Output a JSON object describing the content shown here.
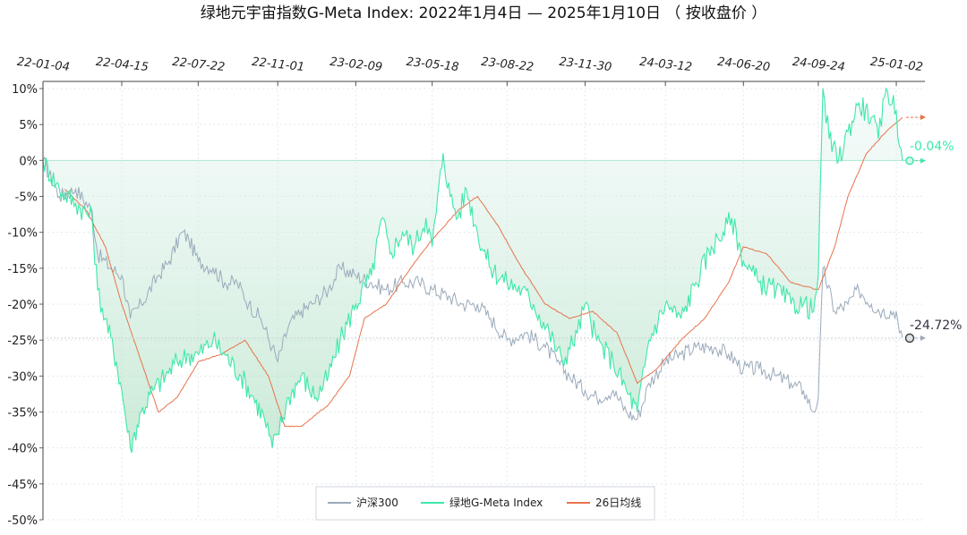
{
  "chart_data": {
    "type": "line",
    "title": "绿地元宇宙指数G-Meta Index:  2022年1月4日  —  2025年1月10日 （ 按收盘价 ）",
    "x_tick_labels": [
      "22-01-04",
      "22-04-15",
      "22-07-22",
      "22-11-01",
      "23-02-09",
      "23-05-18",
      "23-08-22",
      "23-11-30",
      "24-03-12",
      "24-06-20",
      "24-09-24",
      "25-01-02"
    ],
    "y_tick_labels": [
      "10%",
      "5%",
      "0%",
      "-5%",
      "-10%",
      "-15%",
      "-20%",
      "-25%",
      "-30%",
      "-35%",
      "-40%",
      "-45%",
      "-50%"
    ],
    "ylim": [
      -50,
      10
    ],
    "x_range": [
      "2022-01-04",
      "2025-01-10"
    ],
    "grid": true,
    "legend_position": "bottom-center",
    "end_labels": {
      "gmeta": "-0.04%",
      "hs300": "-24.72%"
    },
    "series": [
      {
        "name": "沪深300",
        "color": "#9aaabb",
        "points": [
          [
            "2022-01-04",
            0
          ],
          [
            "2022-01-25",
            -5
          ],
          [
            "2022-02-15",
            -4
          ],
          [
            "2022-03-08",
            -7
          ],
          [
            "2022-03-15",
            -13
          ],
          [
            "2022-04-01",
            -15
          ],
          [
            "2022-04-15",
            -16
          ],
          [
            "2022-04-26",
            -22
          ],
          [
            "2022-05-10",
            -20
          ],
          [
            "2022-06-01",
            -16
          ],
          [
            "2022-06-15",
            -14
          ],
          [
            "2022-07-01",
            -10
          ],
          [
            "2022-07-10",
            -11
          ],
          [
            "2022-07-22",
            -14
          ],
          [
            "2022-08-10",
            -15
          ],
          [
            "2022-08-25",
            -17
          ],
          [
            "2022-09-10",
            -17
          ],
          [
            "2022-09-25",
            -20
          ],
          [
            "2022-10-10",
            -22
          ],
          [
            "2022-10-25",
            -26
          ],
          [
            "2022-11-01",
            -28
          ],
          [
            "2022-11-15",
            -23
          ],
          [
            "2022-12-01",
            -21
          ],
          [
            "2022-12-15",
            -20
          ],
          [
            "2023-01-05",
            -18
          ],
          [
            "2023-01-20",
            -15
          ],
          [
            "2023-02-09",
            -16
          ],
          [
            "2023-03-01",
            -17
          ],
          [
            "2023-03-20",
            -18
          ],
          [
            "2023-04-10",
            -17
          ],
          [
            "2023-05-01",
            -17
          ],
          [
            "2023-05-18",
            -18
          ],
          [
            "2023-06-10",
            -19
          ],
          [
            "2023-06-25",
            -20
          ],
          [
            "2023-07-15",
            -20
          ],
          [
            "2023-08-01",
            -22
          ],
          [
            "2023-08-22",
            -25
          ],
          [
            "2023-09-15",
            -24
          ],
          [
            "2023-10-10",
            -26
          ],
          [
            "2023-10-25",
            -28
          ],
          [
            "2023-11-10",
            -30
          ],
          [
            "2023-11-30",
            -32
          ],
          [
            "2023-12-15",
            -33
          ],
          [
            "2024-01-05",
            -32
          ],
          [
            "2024-01-22",
            -35
          ],
          [
            "2024-02-05",
            -36
          ],
          [
            "2024-02-20",
            -31
          ],
          [
            "2024-03-12",
            -28
          ],
          [
            "2024-04-01",
            -27
          ],
          [
            "2024-04-20",
            -26
          ],
          [
            "2024-05-15",
            -26
          ],
          [
            "2024-06-01",
            -27
          ],
          [
            "2024-06-20",
            -29
          ],
          [
            "2024-07-10",
            -29
          ],
          [
            "2024-08-01",
            -30
          ],
          [
            "2024-08-20",
            -31
          ],
          [
            "2024-09-05",
            -32
          ],
          [
            "2024-09-18",
            -35
          ],
          [
            "2024-09-24",
            -33
          ],
          [
            "2024-09-30",
            -15
          ],
          [
            "2024-10-15",
            -21
          ],
          [
            "2024-11-01",
            -20
          ],
          [
            "2024-11-15",
            -18
          ],
          [
            "2024-12-01",
            -20
          ],
          [
            "2024-12-15",
            -21
          ],
          [
            "2025-01-02",
            -21
          ],
          [
            "2025-01-06",
            -24
          ],
          [
            "2025-01-10",
            -24.72
          ]
        ]
      },
      {
        "name": "绿地G-Meta Index",
        "color": "#3de8a8",
        "points": [
          [
            "2022-01-04",
            0
          ],
          [
            "2022-01-25",
            -4
          ],
          [
            "2022-02-15",
            -6
          ],
          [
            "2022-03-08",
            -8
          ],
          [
            "2022-03-15",
            -18
          ],
          [
            "2022-03-25",
            -22
          ],
          [
            "2022-04-08",
            -28
          ],
          [
            "2022-04-15",
            -32
          ],
          [
            "2022-04-26",
            -40
          ],
          [
            "2022-05-10",
            -35
          ],
          [
            "2022-05-25",
            -32
          ],
          [
            "2022-06-10",
            -30
          ],
          [
            "2022-06-25",
            -28
          ],
          [
            "2022-07-10",
            -27
          ],
          [
            "2022-07-22",
            -27
          ],
          [
            "2022-08-10",
            -25
          ],
          [
            "2022-08-25",
            -27
          ],
          [
            "2022-09-15",
            -30
          ],
          [
            "2022-10-01",
            -33
          ],
          [
            "2022-10-15",
            -36
          ],
          [
            "2022-10-25",
            -40
          ],
          [
            "2022-11-01",
            -38
          ],
          [
            "2022-11-15",
            -33
          ],
          [
            "2022-12-01",
            -30
          ],
          [
            "2022-12-20",
            -33
          ],
          [
            "2023-01-05",
            -30
          ],
          [
            "2023-01-20",
            -25
          ],
          [
            "2023-02-09",
            -20
          ],
          [
            "2023-03-01",
            -16
          ],
          [
            "2023-03-15",
            -8
          ],
          [
            "2023-03-25",
            -13
          ],
          [
            "2023-04-10",
            -10
          ],
          [
            "2023-04-25",
            -12
          ],
          [
            "2023-05-10",
            -8
          ],
          [
            "2023-05-18",
            -12
          ],
          [
            "2023-06-01",
            1
          ],
          [
            "2023-06-10",
            -5
          ],
          [
            "2023-06-20",
            -8
          ],
          [
            "2023-07-01",
            -4
          ],
          [
            "2023-07-15",
            -10
          ],
          [
            "2023-08-01",
            -15
          ],
          [
            "2023-08-22",
            -17
          ],
          [
            "2023-09-10",
            -18
          ],
          [
            "2023-09-25",
            -20
          ],
          [
            "2023-10-15",
            -24
          ],
          [
            "2023-11-01",
            -28
          ],
          [
            "2023-11-20",
            -24
          ],
          [
            "2023-11-30",
            -20
          ],
          [
            "2023-12-15",
            -25
          ],
          [
            "2024-01-05",
            -28
          ],
          [
            "2024-01-22",
            -32
          ],
          [
            "2024-02-05",
            -35
          ],
          [
            "2024-02-20",
            -25
          ],
          [
            "2024-03-12",
            -20
          ],
          [
            "2024-04-01",
            -22
          ],
          [
            "2024-04-20",
            -17
          ],
          [
            "2024-05-10",
            -12
          ],
          [
            "2024-05-25",
            -10
          ],
          [
            "2024-06-05",
            -8
          ],
          [
            "2024-06-20",
            -14
          ],
          [
            "2024-07-10",
            -17
          ],
          [
            "2024-08-01",
            -18
          ],
          [
            "2024-08-20",
            -20
          ],
          [
            "2024-09-05",
            -20
          ],
          [
            "2024-09-18",
            -21
          ],
          [
            "2024-09-24",
            -16
          ],
          [
            "2024-09-30",
            10
          ],
          [
            "2024-10-08",
            3
          ],
          [
            "2024-10-20",
            0
          ],
          [
            "2024-11-01",
            4
          ],
          [
            "2024-11-15",
            8
          ],
          [
            "2024-12-01",
            6
          ],
          [
            "2024-12-10",
            3
          ],
          [
            "2024-12-20",
            10
          ],
          [
            "2025-01-02",
            7
          ],
          [
            "2025-01-06",
            2
          ],
          [
            "2025-01-10",
            -0.04
          ]
        ]
      },
      {
        "name": "26日均线",
        "color": "#e8734a",
        "points": [
          [
            "2022-02-01",
            -4
          ],
          [
            "2022-03-01",
            -7
          ],
          [
            "2022-03-25",
            -12
          ],
          [
            "2022-04-15",
            -20
          ],
          [
            "2022-05-10",
            -28
          ],
          [
            "2022-06-01",
            -35
          ],
          [
            "2022-06-25",
            -33
          ],
          [
            "2022-07-22",
            -28
          ],
          [
            "2022-08-20",
            -27
          ],
          [
            "2022-09-20",
            -25
          ],
          [
            "2022-10-20",
            -30
          ],
          [
            "2022-11-10",
            -37
          ],
          [
            "2022-12-01",
            -37
          ],
          [
            "2023-01-05",
            -34
          ],
          [
            "2023-02-01",
            -30
          ],
          [
            "2023-02-20",
            -22
          ],
          [
            "2023-03-20",
            -20
          ],
          [
            "2023-04-20",
            -15
          ],
          [
            "2023-05-18",
            -11
          ],
          [
            "2023-06-20",
            -7
          ],
          [
            "2023-07-15",
            -5
          ],
          [
            "2023-08-10",
            -9
          ],
          [
            "2023-09-10",
            -15
          ],
          [
            "2023-10-10",
            -20
          ],
          [
            "2023-11-10",
            -22
          ],
          [
            "2023-12-10",
            -21
          ],
          [
            "2024-01-10",
            -24
          ],
          [
            "2024-02-05",
            -31
          ],
          [
            "2024-03-01",
            -29
          ],
          [
            "2024-04-01",
            -25
          ],
          [
            "2024-05-01",
            -22
          ],
          [
            "2024-06-01",
            -17
          ],
          [
            "2024-06-20",
            -12
          ],
          [
            "2024-07-20",
            -13
          ],
          [
            "2024-08-20",
            -17
          ],
          [
            "2024-09-24",
            -18
          ],
          [
            "2024-10-15",
            -12
          ],
          [
            "2024-11-01",
            -5
          ],
          [
            "2024-11-25",
            1
          ],
          [
            "2024-12-20",
            4
          ],
          [
            "2025-01-10",
            6
          ]
        ]
      }
    ]
  }
}
